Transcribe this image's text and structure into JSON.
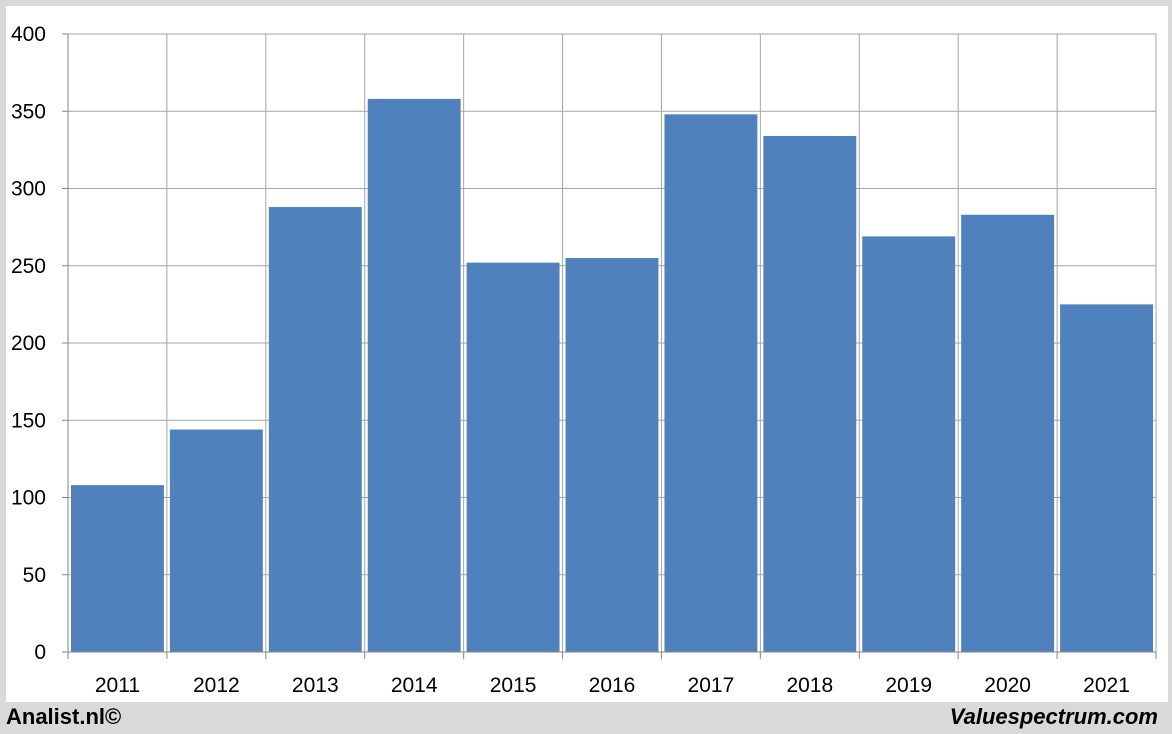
{
  "footer": {
    "left_credit": "Analist.nl©",
    "right_credit": "Valuespectrum.com"
  },
  "colors": {
    "bar": "#4f81bd",
    "grid": "#a6a6a6",
    "axis": "#868686",
    "background": "#ffffff",
    "frame": "#d9d9d9"
  },
  "chart_data": {
    "type": "bar",
    "categories": [
      "2011",
      "2012",
      "2013",
      "2014",
      "2015",
      "2016",
      "2017",
      "2018",
      "2019",
      "2020",
      "2021"
    ],
    "values": [
      108,
      144,
      288,
      358,
      252,
      255,
      348,
      334,
      269,
      283,
      225
    ],
    "y_ticks": [
      "0",
      "50",
      "100",
      "150",
      "200",
      "250",
      "300",
      "350",
      "400"
    ],
    "ylim": [
      0,
      400
    ],
    "grid": true,
    "legend": "none",
    "title": "",
    "xlabel": "",
    "ylabel": ""
  }
}
